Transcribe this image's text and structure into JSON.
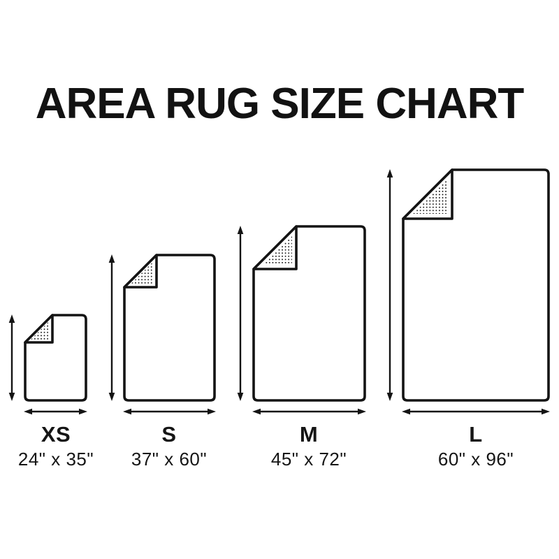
{
  "title": "AREA RUG SIZE CHART",
  "colors": {
    "ink": "#141414",
    "paper": "#ffffff"
  },
  "sizes": [
    {
      "label": "XS",
      "dimensions": "24\" x 35\"",
      "width_inches": 24,
      "height_inches": 35
    },
    {
      "label": "S",
      "dimensions": "37\" x 60\"",
      "width_inches": 37,
      "height_inches": 60
    },
    {
      "label": "M",
      "dimensions": "45\" x 72\"",
      "width_inches": 45,
      "height_inches": 72
    },
    {
      "label": "L",
      "dimensions": "60\" x 96\"",
      "width_inches": 60,
      "height_inches": 96
    }
  ]
}
